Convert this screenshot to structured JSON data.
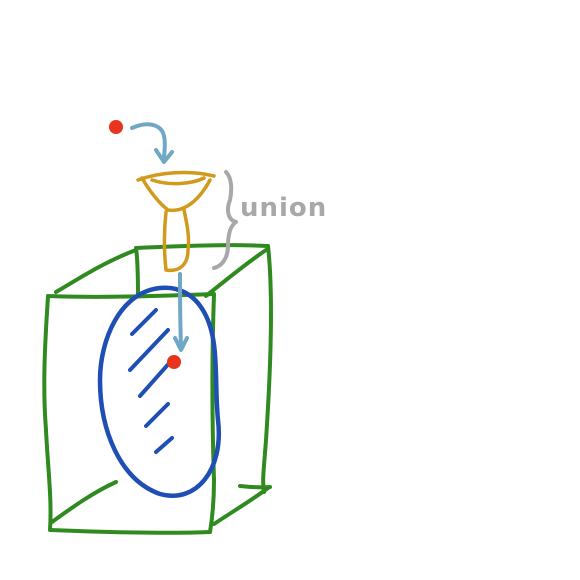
{
  "diagram": {
    "label": "union",
    "colors": {
      "background": "#ffffff",
      "cube": "#2f8a1f",
      "oval": "#1f4fb5",
      "funnel": "#d19a1c",
      "brace": "#a8a8a8",
      "arrow": "#6fa8c4",
      "dot": "#e8341c"
    },
    "icons": [
      "red-dot",
      "curved-arrow",
      "funnel-shape",
      "curly-brace",
      "down-arrow",
      "wireframe-cube",
      "blue-oval"
    ]
  }
}
